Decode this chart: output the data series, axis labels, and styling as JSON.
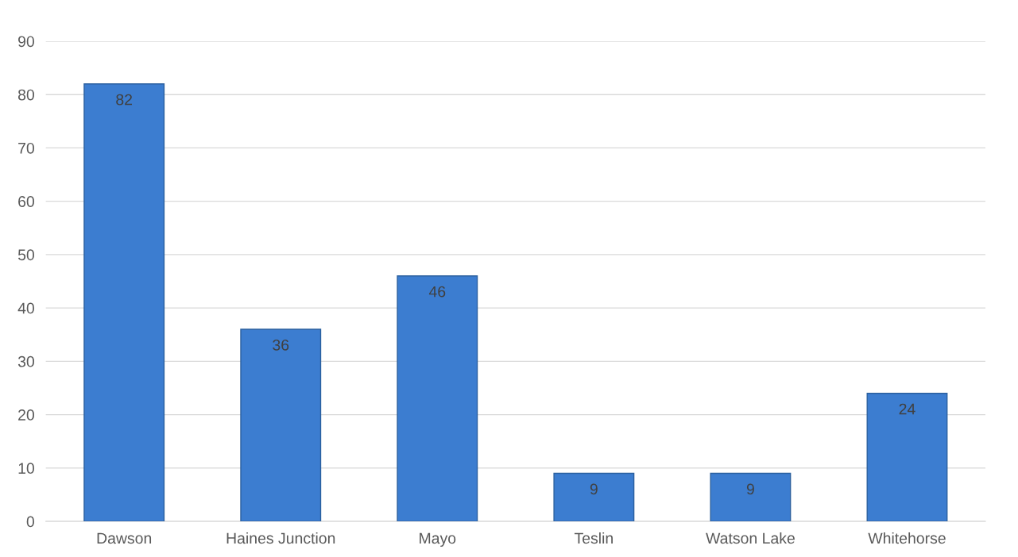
{
  "chart_data": {
    "type": "bar",
    "categories": [
      "Dawson",
      "Haines Junction",
      "Mayo",
      "Teslin",
      "Watson Lake",
      "Whitehorse"
    ],
    "values": [
      82,
      36,
      46,
      9,
      9,
      24
    ],
    "color": "#3c7dd0",
    "ylim": [
      0,
      90
    ],
    "yticks": [
      0,
      10,
      20,
      30,
      40,
      50,
      60,
      70,
      80,
      90
    ],
    "grid": "y",
    "data_labels": true
  }
}
